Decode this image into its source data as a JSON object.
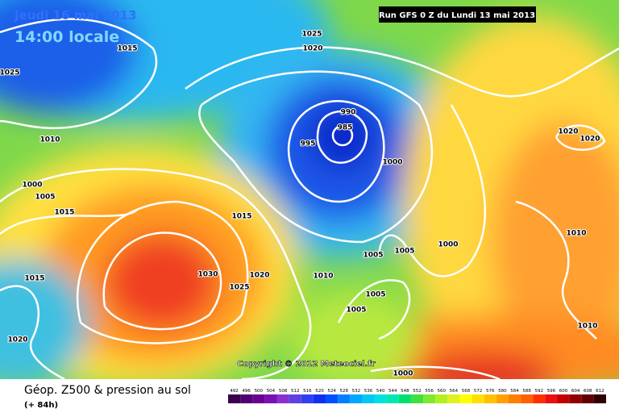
{
  "header": {
    "date": "Jeudi 16 mai 2013",
    "time": "14:00 locale",
    "run": "Run GFS 0 Z du Lundi 13 mai 2013"
  },
  "copyright": "Copyright © 2012 Meteociel.fr",
  "footer": {
    "title": "Géop. Z500 & pression au sol",
    "lead": "(+ 84h)"
  },
  "isobar_labels": [
    1025,
    1015,
    1025,
    1020,
    990,
    985,
    995,
    1000,
    1010,
    1000,
    1005,
    1015,
    1015,
    1030,
    1025,
    1020,
    1015,
    1010,
    1005,
    1005,
    1000,
    1005,
    1005,
    1020,
    1020,
    1010,
    1010,
    1020,
    1000
  ],
  "colorbar_ticks": [
    492,
    496,
    500,
    504,
    508,
    512,
    516,
    520,
    524,
    528,
    532,
    536,
    540,
    544,
    548,
    552,
    556,
    560,
    564,
    568,
    572,
    576,
    580,
    584,
    588,
    592,
    596,
    600,
    604,
    608,
    612
  ]
}
